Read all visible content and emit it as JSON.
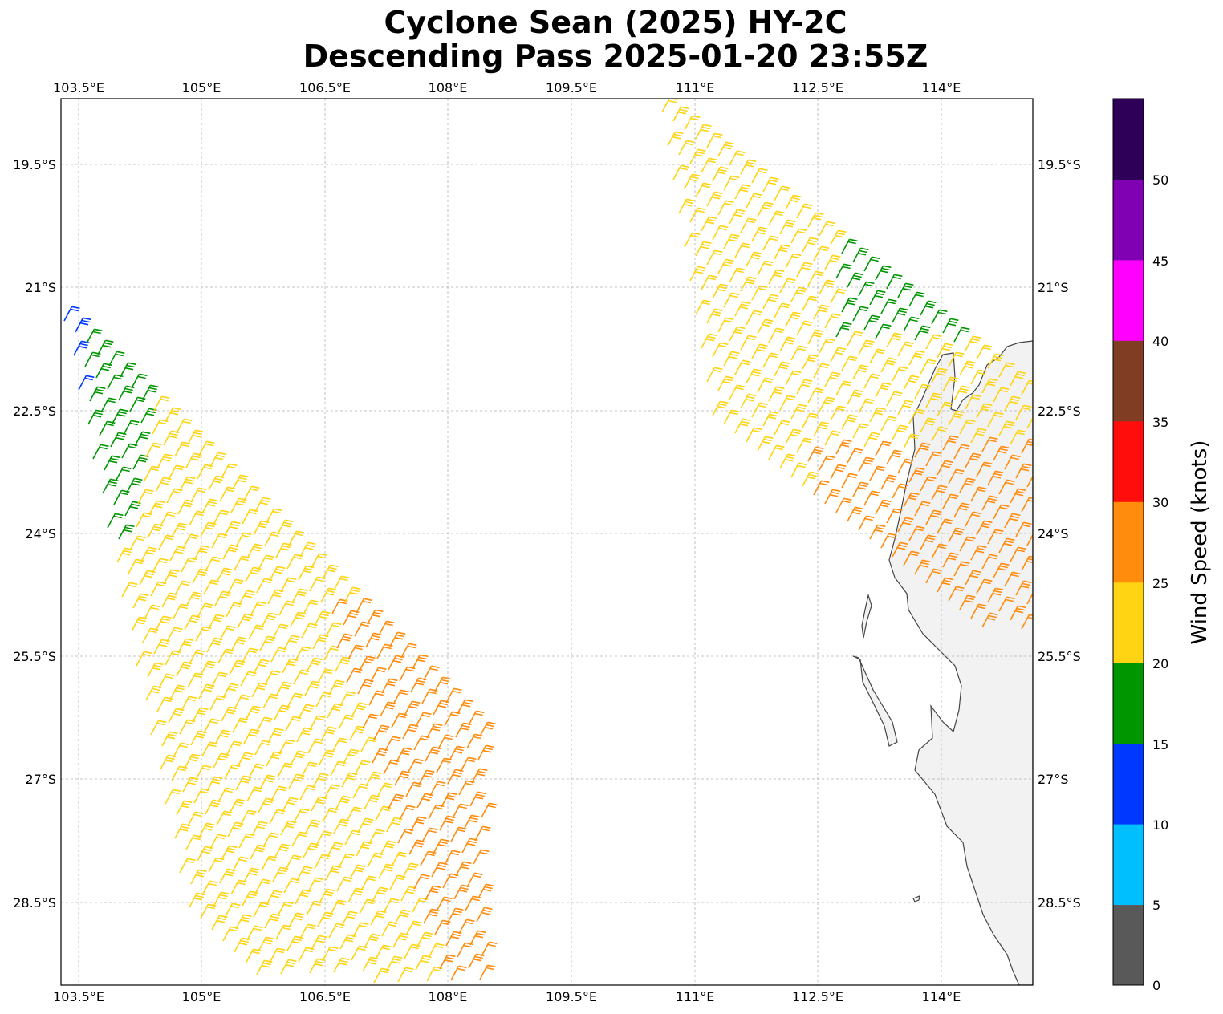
{
  "title_line1": "Cyclone Sean (2025) HY-2C",
  "title_line2": "Descending Pass 2025-01-20 23:55Z",
  "map": {
    "lon_ticks": [
      "103.5°E",
      "105°E",
      "106.5°E",
      "108°E",
      "109.5°E",
      "111°E",
      "112.5°E",
      "114°E"
    ],
    "lat_ticks": [
      "19.5°S",
      "21°S",
      "22.5°S",
      "24°S",
      "25.5°S",
      "27°S",
      "28.5°S"
    ],
    "grid": true,
    "land_color": "#f2f2f2",
    "coast_color": "#444444"
  },
  "colorbar": {
    "label": "Wind Speed (knots)",
    "tick_labels": [
      "0",
      "5",
      "10",
      "15",
      "20",
      "25",
      "30",
      "35",
      "40",
      "45",
      "50"
    ],
    "colors": [
      "#595959",
      "#00bfff",
      "#0038ff",
      "#009600",
      "#ffd412",
      "#ff8c0d",
      "#ff0d0d",
      "#803d24",
      "#ff00ff",
      "#8000b3",
      "#2e0057"
    ],
    "range": [
      0,
      55
    ]
  }
}
